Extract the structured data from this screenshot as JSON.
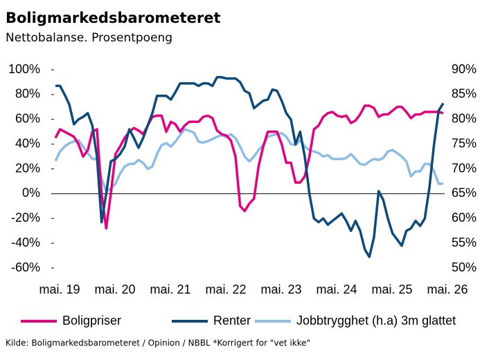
{
  "chart_data": {
    "type": "line",
    "title": "Boligmarkedsbarometeret",
    "subtitle": "Nettobalanse. Prosentpoeng",
    "source": "Kilde: Boligmarkedsbarometeret / Opinion / NBBL *Korrigert for \"vet ikke\"",
    "categories": [
      "mai. 19",
      null,
      null,
      null,
      null,
      null,
      null,
      null,
      null,
      null,
      null,
      null,
      "mai. 20",
      null,
      null,
      null,
      null,
      null,
      null,
      null,
      null,
      null,
      null,
      null,
      "mai. 21",
      null,
      null,
      null,
      null,
      null,
      null,
      null,
      null,
      null,
      null,
      null,
      "mai. 22",
      null,
      null,
      null,
      null,
      null,
      null,
      null,
      null,
      null,
      null,
      null,
      "mai. 23",
      null,
      null,
      null,
      null,
      null,
      null,
      null,
      null,
      null,
      null,
      null,
      "mai. 24",
      null,
      null,
      null,
      null,
      null,
      null,
      null,
      null,
      null,
      null,
      null,
      "mai. 25",
      null,
      null,
      null,
      null,
      null,
      null,
      null,
      null,
      null,
      null,
      null,
      "mai. 26"
    ],
    "ylim": [
      -60,
      100
    ],
    "yticks": [
      {
        "value": -60,
        "label": "-60%"
      },
      {
        "value": -40,
        "label": "-40%"
      },
      {
        "value": -20,
        "label": "-20%"
      },
      {
        "value": 0,
        "label": "0%"
      },
      {
        "value": 20,
        "label": "20%"
      },
      {
        "value": 40,
        "label": "40%"
      },
      {
        "value": 60,
        "label": "60%"
      },
      {
        "value": 80,
        "label": "80%"
      },
      {
        "value": 100,
        "label": "100%"
      }
    ],
    "y2lim": [
      50,
      90
    ],
    "y2ticks": [
      {
        "value": 50,
        "label": "50%"
      },
      {
        "value": 55,
        "label": "55%"
      },
      {
        "value": 60,
        "label": "60%"
      },
      {
        "value": 65,
        "label": "65%"
      },
      {
        "value": 70,
        "label": "70%"
      },
      {
        "value": 75,
        "label": "75%"
      },
      {
        "value": 80,
        "label": "80%"
      },
      {
        "value": 85,
        "label": "85%"
      },
      {
        "value": 90,
        "label": "90%"
      }
    ],
    "grid": false,
    "legend": "bottom",
    "series": [
      {
        "name": "Boligpriser",
        "color": "#e6007e",
        "values": [
          45,
          52,
          50,
          48,
          46,
          40,
          30,
          35,
          50,
          52,
          0,
          -28,
          0,
          32,
          38,
          45,
          50,
          53,
          51,
          48,
          55,
          62,
          63,
          63,
          50,
          58,
          56,
          50,
          55,
          58,
          58,
          58,
          62,
          63,
          61,
          51,
          48,
          47,
          43,
          30,
          -10,
          -14,
          -8,
          -4,
          22,
          38,
          50,
          50,
          50,
          40,
          25,
          25,
          9,
          9,
          14,
          30,
          52,
          55,
          62,
          65,
          66,
          63,
          62,
          63,
          57,
          59,
          64,
          71,
          71,
          69,
          62,
          64,
          64,
          67,
          70,
          70,
          66,
          61,
          64,
          64,
          66,
          66,
          66,
          66,
          65
        ]
      },
      {
        "name": "Renter",
        "color": "#0b4a7a",
        "values": [
          87,
          87,
          80,
          72,
          56,
          60,
          62,
          65,
          55,
          30,
          -23,
          0,
          26,
          28,
          32,
          38,
          52,
          45,
          37,
          45,
          55,
          65,
          79,
          79,
          79,
          76,
          82,
          89,
          89,
          89,
          89,
          87,
          89,
          89,
          87,
          94,
          94,
          93,
          93,
          93,
          90,
          83,
          81,
          69,
          72,
          75,
          76,
          84,
          83,
          75,
          65,
          60,
          40,
          50,
          30,
          0,
          -20,
          -23,
          -20,
          -25,
          -22,
          -19,
          -16,
          -22,
          -30,
          -22,
          -30,
          -45,
          -51,
          -35,
          2,
          -5,
          -20,
          -32,
          -37,
          -42,
          -30,
          -28,
          -22,
          -26,
          -20,
          5,
          40,
          67,
          73
        ]
      },
      {
        "name": "Jobbtrygghet (h.a) 3m glattet",
        "color": "#8dbde6",
        "axis": "y2",
        "values": [
          71.6,
          73.5,
          74.5,
          75.2,
          75.5,
          75.8,
          74.5,
          73.2,
          72,
          72,
          68,
          65.5,
          66,
          67,
          69,
          70.5,
          71,
          71,
          71.8,
          71.2,
          70,
          70.5,
          73,
          74.8,
          75.2,
          74.5,
          75.5,
          76.8,
          78,
          77.7,
          77.3,
          75.5,
          75.3,
          75.6,
          76,
          76.5,
          76.8,
          76.4,
          77,
          76.2,
          74.5,
          72.5,
          71.5,
          72.5,
          73.8,
          74.8,
          76.5,
          76.8,
          77,
          77.2,
          76.5,
          75,
          74.8,
          75.8,
          74.5,
          73.8,
          73.5,
          73.2,
          72.5,
          72.8,
          72,
          72,
          72,
          72.2,
          73,
          72,
          71,
          70.8,
          71.5,
          72,
          71.8,
          72.2,
          73.5,
          73.8,
          73.2,
          72.5,
          71.5,
          68.5,
          69.5,
          69.5,
          71,
          71,
          69.5,
          67,
          67
        ]
      }
    ]
  }
}
